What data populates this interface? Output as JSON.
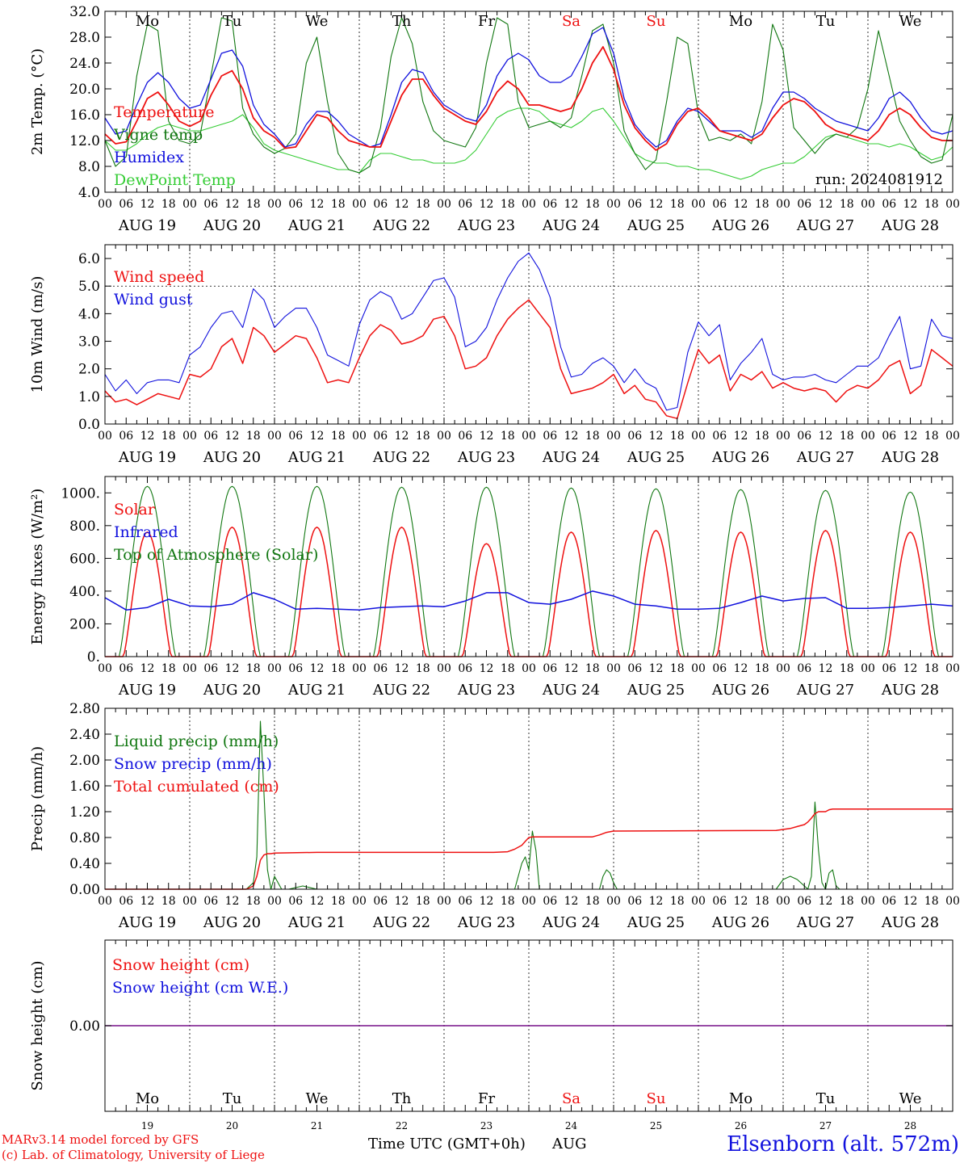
{
  "days": {
    "names": [
      "Mo",
      "Tu",
      "We",
      "Th",
      "Fr",
      "Sa",
      "Su",
      "Mo",
      "Tu",
      "We"
    ],
    "weekend_flags": [
      false,
      false,
      false,
      false,
      false,
      true,
      true,
      false,
      false,
      false
    ],
    "date_labels": [
      "AUG 19",
      "AUG 20",
      "AUG 21",
      "AUG 22",
      "AUG 23",
      "AUG 24",
      "AUG 25",
      "AUG 26",
      "AUG 27",
      "AUG 28"
    ],
    "day_numbers": [
      "19",
      "20",
      "21",
      "22",
      "23",
      "24",
      "25",
      "26",
      "27",
      "28"
    ],
    "hour_labels": [
      "00",
      "06",
      "12",
      "18"
    ]
  },
  "colors": {
    "red": "#ee1111",
    "blue": "#1111dd",
    "darkgreen": "#117711",
    "lightgreen": "#33cc33",
    "purple": "#771188"
  },
  "footer": {
    "model_line": "MARv3.14 model forced by GFS",
    "copyright_line": "(c) Lab. of Climatology, University of Liege",
    "axis_title": "Time UTC (GMT+0h)",
    "month": "AUG",
    "station": "Elsenborn (alt. 572m)"
  },
  "chart_data": [
    {
      "type": "line",
      "title": "",
      "ylabel": "2m Temp. (°C)",
      "ylim": [
        4,
        32
      ],
      "yticks": [
        "4.0",
        "8.0",
        "12.0",
        "16.0",
        "20.0",
        "24.0",
        "28.0",
        "32.0"
      ],
      "annotation": "run: 2024081912",
      "x_hours": [
        0,
        3,
        6,
        9,
        12,
        15,
        18,
        21,
        24,
        27,
        30,
        33,
        36,
        39,
        42,
        45,
        48,
        51,
        54,
        57,
        60,
        63,
        66,
        69,
        72,
        75,
        78,
        81,
        84,
        87,
        90,
        93,
        96,
        99,
        102,
        105,
        108,
        111,
        114,
        117,
        120,
        123,
        126,
        129,
        132,
        135,
        138,
        141,
        144,
        147,
        150,
        153,
        156,
        159,
        162,
        165,
        168,
        171,
        174,
        177,
        180,
        183,
        186,
        189,
        192,
        195,
        198,
        201,
        204,
        207,
        210,
        213,
        216,
        219,
        222,
        225,
        228,
        231,
        234,
        237,
        240
      ],
      "series": [
        {
          "name": "Temperature",
          "color": "#ee1111",
          "values": [
            13.0,
            11.5,
            11.8,
            15.0,
            18.5,
            19.5,
            17.5,
            15.0,
            14.2,
            15.0,
            19.0,
            22.0,
            22.8,
            20.0,
            15.5,
            13.5,
            12.5,
            10.8,
            11.0,
            13.5,
            16.0,
            15.5,
            13.5,
            12.0,
            11.5,
            11.0,
            11.0,
            15.0,
            19.0,
            21.5,
            21.5,
            19.0,
            17.0,
            16.0,
            15.0,
            14.5,
            16.5,
            19.5,
            21.2,
            20.0,
            17.5,
            17.5,
            17.0,
            16.5,
            17.0,
            20.0,
            24.0,
            26.5,
            23.0,
            17.5,
            14.0,
            12.0,
            10.5,
            11.5,
            14.5,
            16.5,
            17.0,
            15.5,
            13.5,
            13.0,
            12.5,
            12.0,
            13.0,
            15.5,
            17.5,
            18.5,
            18.0,
            16.5,
            14.5,
            13.5,
            13.0,
            12.5,
            12.0,
            13.5,
            16.0,
            17.0,
            16.0,
            14.0,
            12.5,
            12.0,
            12.0
          ]
        },
        {
          "name": "Vigne temp",
          "color": "#117711",
          "values": [
            12.0,
            8.0,
            9.5,
            22.0,
            30.0,
            29.0,
            15.0,
            12.0,
            11.5,
            13.0,
            22.0,
            31.0,
            30.5,
            17.0,
            13.0,
            11.0,
            10.0,
            10.8,
            13.0,
            24.0,
            28.0,
            18.0,
            10.0,
            7.5,
            7.0,
            8.0,
            14.0,
            25.0,
            31.0,
            27.0,
            18.0,
            13.5,
            12.0,
            11.5,
            11.0,
            14.0,
            24.0,
            31.0,
            30.0,
            18.0,
            14.0,
            14.5,
            15.0,
            14.0,
            15.5,
            22.0,
            29.0,
            30.0,
            24.0,
            13.5,
            10.0,
            7.5,
            9.0,
            18.0,
            28.0,
            27.0,
            16.0,
            12.0,
            12.5,
            12.0,
            13.0,
            11.5,
            18.0,
            30.0,
            26.0,
            14.0,
            12.0,
            10.0,
            12.0,
            13.0,
            12.5,
            14.0,
            20.0,
            29.0,
            22.0,
            15.0,
            12.0,
            9.5,
            8.5,
            9.0,
            16.0
          ]
        },
        {
          "name": "Humidex",
          "color": "#1111dd",
          "values": [
            15.5,
            13.0,
            13.5,
            17.5,
            21.0,
            22.5,
            21.0,
            18.5,
            17.0,
            17.5,
            21.5,
            25.5,
            26.0,
            23.5,
            17.5,
            14.5,
            13.0,
            11.0,
            11.5,
            14.5,
            16.5,
            16.5,
            15.0,
            13.0,
            12.0,
            11.0,
            11.5,
            16.0,
            21.0,
            23.0,
            22.5,
            19.5,
            17.5,
            16.5,
            15.5,
            15.0,
            17.5,
            22.0,
            24.5,
            25.5,
            24.5,
            22.0,
            21.0,
            21.0,
            22.0,
            25.0,
            28.5,
            29.5,
            25.5,
            18.5,
            14.5,
            12.5,
            11.0,
            12.0,
            15.0,
            17.0,
            16.5,
            15.0,
            13.5,
            13.5,
            13.5,
            12.5,
            13.5,
            17.0,
            19.5,
            19.5,
            18.5,
            17.0,
            16.0,
            15.0,
            14.5,
            14.0,
            13.5,
            15.5,
            18.5,
            19.5,
            18.0,
            15.5,
            13.5,
            13.0,
            13.5
          ]
        },
        {
          "name": "DewPoint Temp",
          "color": "#33cc33",
          "values": [
            12.0,
            10.5,
            10.5,
            11.5,
            13.0,
            14.0,
            14.5,
            14.0,
            13.5,
            13.5,
            14.0,
            14.5,
            15.0,
            16.0,
            14.0,
            11.5,
            10.5,
            10.0,
            9.5,
            9.0,
            8.5,
            8.0,
            7.5,
            7.5,
            7.0,
            9.0,
            10.0,
            10.0,
            9.5,
            9.0,
            9.0,
            8.5,
            8.5,
            8.5,
            9.0,
            10.5,
            13.0,
            15.5,
            16.5,
            17.0,
            17.0,
            16.5,
            15.0,
            14.5,
            14.0,
            15.0,
            16.5,
            17.0,
            15.0,
            12.5,
            10.0,
            9.0,
            8.5,
            8.5,
            8.0,
            8.0,
            7.5,
            7.5,
            7.0,
            6.5,
            6.0,
            6.5,
            7.5,
            8.0,
            8.5,
            8.5,
            9.5,
            11.0,
            12.5,
            13.0,
            12.5,
            12.0,
            11.5,
            11.5,
            11.0,
            11.5,
            11.0,
            10.0,
            9.0,
            9.5,
            11.0
          ]
        }
      ]
    },
    {
      "type": "line",
      "title": "",
      "ylabel": "10m Wind (m/s)",
      "ylim": [
        0,
        6.5
      ],
      "yticks": [
        "0.0",
        "1.0",
        "2.0",
        "3.0",
        "4.0",
        "5.0",
        "6.0"
      ],
      "reference_line": 5.0,
      "x_hours": [
        0,
        3,
        6,
        9,
        12,
        15,
        18,
        21,
        24,
        27,
        30,
        33,
        36,
        39,
        42,
        45,
        48,
        51,
        54,
        57,
        60,
        63,
        66,
        69,
        72,
        75,
        78,
        81,
        84,
        87,
        90,
        93,
        96,
        99,
        102,
        105,
        108,
        111,
        114,
        117,
        120,
        123,
        126,
        129,
        132,
        135,
        138,
        141,
        144,
        147,
        150,
        153,
        156,
        159,
        162,
        165,
        168,
        171,
        174,
        177,
        180,
        183,
        186,
        189,
        192,
        195,
        198,
        201,
        204,
        207,
        210,
        213,
        216,
        219,
        222,
        225,
        228,
        231,
        234,
        237,
        240
      ],
      "series": [
        {
          "name": "Wind speed",
          "color": "#ee1111",
          "values": [
            1.2,
            0.8,
            0.9,
            0.7,
            0.9,
            1.1,
            1.0,
            0.9,
            1.8,
            1.7,
            2.0,
            2.8,
            3.1,
            2.2,
            3.5,
            3.2,
            2.6,
            2.9,
            3.2,
            3.1,
            2.4,
            1.5,
            1.6,
            1.5,
            2.4,
            3.2,
            3.6,
            3.4,
            2.9,
            3.0,
            3.2,
            3.8,
            3.9,
            3.2,
            2.0,
            2.1,
            2.4,
            3.2,
            3.8,
            4.2,
            4.5,
            4.0,
            3.5,
            2.0,
            1.1,
            1.2,
            1.3,
            1.5,
            1.8,
            1.1,
            1.4,
            0.9,
            0.8,
            0.3,
            0.2,
            1.5,
            2.7,
            2.2,
            2.5,
            1.2,
            1.8,
            1.6,
            1.9,
            1.3,
            1.5,
            1.3,
            1.2,
            1.3,
            1.2,
            0.8,
            1.2,
            1.4,
            1.3,
            1.6,
            2.1,
            2.3,
            1.1,
            1.4,
            2.7,
            2.4,
            2.1
          ]
        },
        {
          "name": "Wind gust",
          "color": "#1111dd",
          "values": [
            1.8,
            1.2,
            1.6,
            1.1,
            1.5,
            1.6,
            1.6,
            1.5,
            2.5,
            2.8,
            3.5,
            4.0,
            4.1,
            3.5,
            4.9,
            4.5,
            3.5,
            3.9,
            4.2,
            4.2,
            3.5,
            2.5,
            2.3,
            2.1,
            3.6,
            4.5,
            4.8,
            4.6,
            3.8,
            4.0,
            4.6,
            5.2,
            5.3,
            4.6,
            2.8,
            3.0,
            3.5,
            4.5,
            5.3,
            5.9,
            6.2,
            5.6,
            4.6,
            2.8,
            1.7,
            1.8,
            2.2,
            2.4,
            2.1,
            1.5,
            2.0,
            1.5,
            1.3,
            0.5,
            0.6,
            2.6,
            3.7,
            3.2,
            3.6,
            1.6,
            2.2,
            2.6,
            3.1,
            1.8,
            1.6,
            1.7,
            1.7,
            1.8,
            1.6,
            1.5,
            1.8,
            2.1,
            2.1,
            2.4,
            3.2,
            3.9,
            2.0,
            2.1,
            3.8,
            3.2,
            3.1
          ]
        }
      ]
    },
    {
      "type": "line",
      "title": "",
      "ylabel": "Energy fluxes (W/m²)",
      "ylim": [
        0,
        1100
      ],
      "yticks": [
        "0.",
        "200.",
        "400.",
        "600.",
        "800.",
        "1000."
      ],
      "toa_peaks": [
        1040,
        1040,
        1040,
        1035,
        1035,
        1030,
        1025,
        1020,
        1015,
        1005
      ],
      "solar_peaks": [
        760,
        790,
        790,
        790,
        690,
        760,
        770,
        760,
        770,
        760
      ],
      "series": [
        {
          "name": "Solar",
          "color": "#ee1111",
          "description_of_shape": "daily bell curve peaking near 12 UTC"
        },
        {
          "name": "Infrared",
          "color": "#1111dd",
          "x_hours": [
            0,
            6,
            12,
            18,
            24,
            30,
            36,
            42,
            48,
            54,
            60,
            66,
            72,
            78,
            84,
            90,
            96,
            102,
            108,
            114,
            120,
            126,
            132,
            138,
            144,
            150,
            156,
            162,
            168,
            174,
            180,
            186,
            192,
            198,
            204,
            210,
            216,
            222,
            228,
            234,
            240
          ],
          "values": [
            360,
            285,
            300,
            350,
            310,
            305,
            320,
            390,
            350,
            290,
            295,
            290,
            285,
            300,
            305,
            310,
            305,
            340,
            390,
            390,
            330,
            320,
            350,
            400,
            370,
            320,
            310,
            290,
            290,
            295,
            330,
            370,
            340,
            355,
            360,
            295,
            295,
            300,
            310,
            320,
            310
          ]
        },
        {
          "name": "Top of Atmosphere (Solar)",
          "color": "#117711",
          "description_of_shape": "daily bell curve peaking near 12 UTC"
        }
      ]
    },
    {
      "type": "line",
      "title": "",
      "ylabel": "Precip (mm/h)",
      "ylim": [
        0,
        2.8
      ],
      "yticks": [
        "0.00",
        "0.40",
        "0.80",
        "1.20",
        "1.60",
        "2.00",
        "2.40",
        "2.80"
      ],
      "series": [
        {
          "name": "Liquid precip (mm/h)",
          "color": "#117711",
          "x_hours": [
            0,
            40,
            42,
            43,
            44,
            45,
            46,
            47,
            48,
            50,
            51,
            52,
            56,
            60,
            62,
            64,
            116,
            118,
            119,
            120,
            121,
            122,
            123,
            124,
            125,
            140,
            141,
            142,
            143,
            144,
            145,
            146,
            148,
            190,
            192,
            194,
            196,
            198,
            199,
            200,
            201,
            202,
            203,
            204,
            205,
            206,
            207,
            208,
            212,
            240
          ],
          "values": [
            0,
            0,
            0.1,
            0.5,
            2.6,
            1.5,
            0.3,
            0,
            0.2,
            0,
            0,
            0,
            0.05,
            0,
            0,
            0,
            0,
            0.4,
            0.5,
            0.3,
            0.9,
            0.6,
            0,
            0,
            0,
            0,
            0.2,
            0.3,
            0.25,
            0.1,
            0,
            0,
            0,
            0,
            0.15,
            0.2,
            0.15,
            0.05,
            0,
            0.2,
            1.35,
            0.6,
            0.1,
            0,
            0.25,
            0.3,
            0.05,
            0,
            0,
            0
          ]
        },
        {
          "name": "Snow precip (mm/h)",
          "color": "#1111dd",
          "values_constant": 0
        },
        {
          "name": "Total cumulated (cm)",
          "color": "#ee1111",
          "x_hours": [
            0,
            40,
            42,
            43,
            44,
            45,
            46,
            47,
            48,
            60,
            96,
            110,
            114,
            116,
            118,
            119,
            120,
            121,
            122,
            130,
            138,
            140,
            142,
            144,
            190,
            194,
            196,
            198,
            199,
            200,
            201,
            202,
            204,
            205,
            206,
            210,
            240
          ],
          "values": [
            0,
            0,
            0.05,
            0.2,
            0.45,
            0.53,
            0.55,
            0.55,
            0.56,
            0.57,
            0.57,
            0.57,
            0.58,
            0.62,
            0.68,
            0.74,
            0.8,
            0.81,
            0.81,
            0.81,
            0.81,
            0.84,
            0.88,
            0.9,
            0.91,
            0.94,
            0.97,
            1.0,
            1.04,
            1.1,
            1.17,
            1.2,
            1.2,
            1.23,
            1.24,
            1.24,
            1.24
          ]
        }
      ]
    },
    {
      "type": "line",
      "title": "",
      "ylabel": "Snow height (cm)",
      "ylim": [
        -1,
        1
      ],
      "yticks": [
        "0.00"
      ],
      "series": [
        {
          "name": "Snow height (cm)",
          "color": "#ee1111",
          "values_constant": 0
        },
        {
          "name": "Snow height (cm W.E.)",
          "color": "#1111dd",
          "values_constant": 0
        }
      ]
    }
  ]
}
